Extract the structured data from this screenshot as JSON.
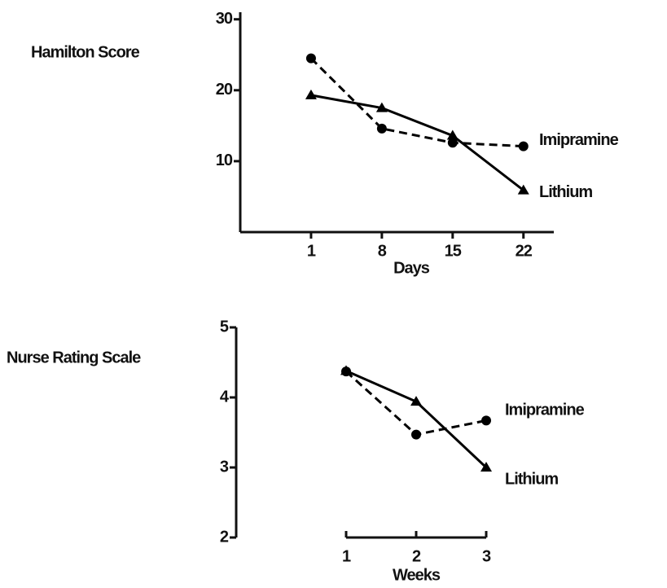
{
  "chart_data": [
    {
      "type": "line",
      "ylabel": "Hamilton Score",
      "xlabel": "Days",
      "x": [
        1,
        8,
        15,
        22
      ],
      "xlim": [
        -6,
        25
      ],
      "xticks": [
        1,
        8,
        15,
        22
      ],
      "ylim": [
        0,
        31
      ],
      "yticks": [
        10,
        20,
        30
      ],
      "series": [
        {
          "name": "Imipramine",
          "color": "#000000",
          "style": "dashed",
          "marker": "circle",
          "values": [
            24.5,
            14.6,
            12.6,
            12.1
          ]
        },
        {
          "name": "Lithium",
          "color": "#000000",
          "style": "solid",
          "marker": "triangle",
          "values": [
            19.3,
            17.5,
            13.6,
            5.9
          ]
        }
      ]
    },
    {
      "type": "line",
      "ylabel": "Nurse Rating Scale",
      "xlabel": "Weeks",
      "x": [
        1,
        2,
        3
      ],
      "xlim": [
        1,
        3
      ],
      "xticks": [
        1,
        2,
        3
      ],
      "ylim": [
        2,
        5
      ],
      "yticks": [
        2,
        3,
        4,
        5
      ],
      "series": [
        {
          "name": "Imipramine",
          "color": "#000000",
          "style": "dashed",
          "marker": "circle",
          "values": [
            4.37,
            3.47,
            3.67
          ]
        },
        {
          "name": "Lithium",
          "color": "#000000",
          "style": "solid",
          "marker": "triangle",
          "values": [
            4.38,
            3.94,
            3.0
          ]
        }
      ]
    }
  ]
}
